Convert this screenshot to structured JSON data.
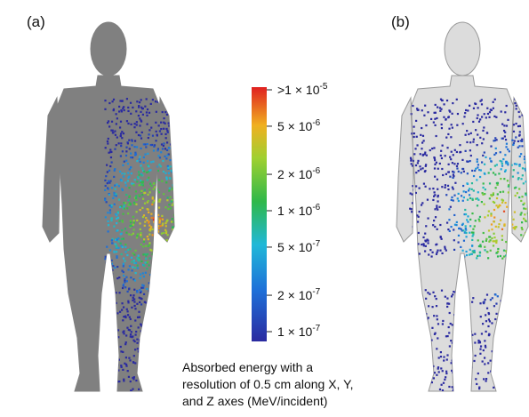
{
  "panels": [
    {
      "label": "(a)"
    },
    {
      "label": "(b)"
    }
  ],
  "colorbar": {
    "scale": "log",
    "min": 1e-07,
    "max": 1e-05,
    "ticks": [
      {
        "value": 1e-05,
        "prefix": ">1 × 10",
        "exponent": "-5"
      },
      {
        "value": 5e-06,
        "prefix": "5 × 10",
        "exponent": "-6"
      },
      {
        "value": 2e-06,
        "prefix": "2 × 10",
        "exponent": "-6"
      },
      {
        "value": 1e-06,
        "prefix": "1 × 10",
        "exponent": "-6"
      },
      {
        "value": 5e-07,
        "prefix": "5 × 10",
        "exponent": "-7"
      },
      {
        "value": 2e-07,
        "prefix": "2 × 10",
        "exponent": "-7"
      },
      {
        "value": 1e-07,
        "prefix": "1 × 10",
        "exponent": "-7"
      }
    ]
  },
  "caption": {
    "lines": [
      "Absorbed energy  with a",
      "resolution of 0.5 cm along X, Y,",
      "and Z axes (MeV/incident)"
    ]
  }
}
